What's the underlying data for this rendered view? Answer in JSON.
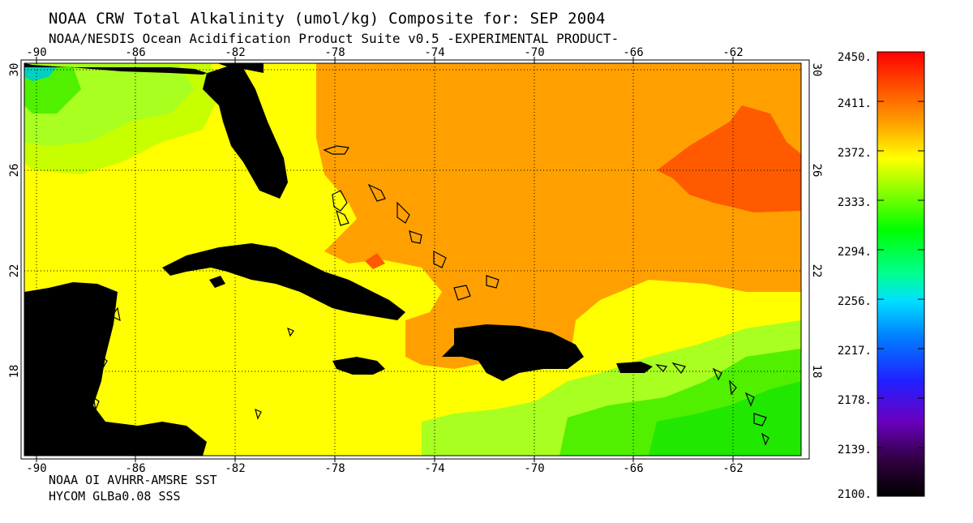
{
  "header": {
    "title": "NOAA CRW Total Alkalinity (umol/kg) Composite for: SEP 2004",
    "subtitle": "NOAA/NESDIS Ocean Acidification Product Suite  v0.5 -EXPERIMENTAL PRODUCT-"
  },
  "map": {
    "lon_labels": [
      "-90",
      "-86",
      "-82",
      "-78",
      "-74",
      "-70",
      "-66",
      "-62"
    ],
    "lat_labels": [
      "30",
      "26",
      "22",
      "18"
    ],
    "colors": {
      "land": "#000000",
      "orange": "#ffa000",
      "dark_orange": "#ff5a00",
      "yellow": "#ffff00",
      "yellow_green": "#c8ff00",
      "light_green": "#a8ff20",
      "green": "#50f000",
      "bright_green": "#20e800",
      "cyan": "#00d0c0"
    }
  },
  "colorbar": {
    "labels": [
      "2450.",
      "2411.",
      "2372.",
      "2333.",
      "2294.",
      "2256.",
      "2217.",
      "2178.",
      "2139.",
      "2100."
    ]
  },
  "footer": {
    "line1": "NOAA OI AVHRR-AMSRE SST",
    "line2": "HYCOM GLBa0.08 SSS"
  }
}
